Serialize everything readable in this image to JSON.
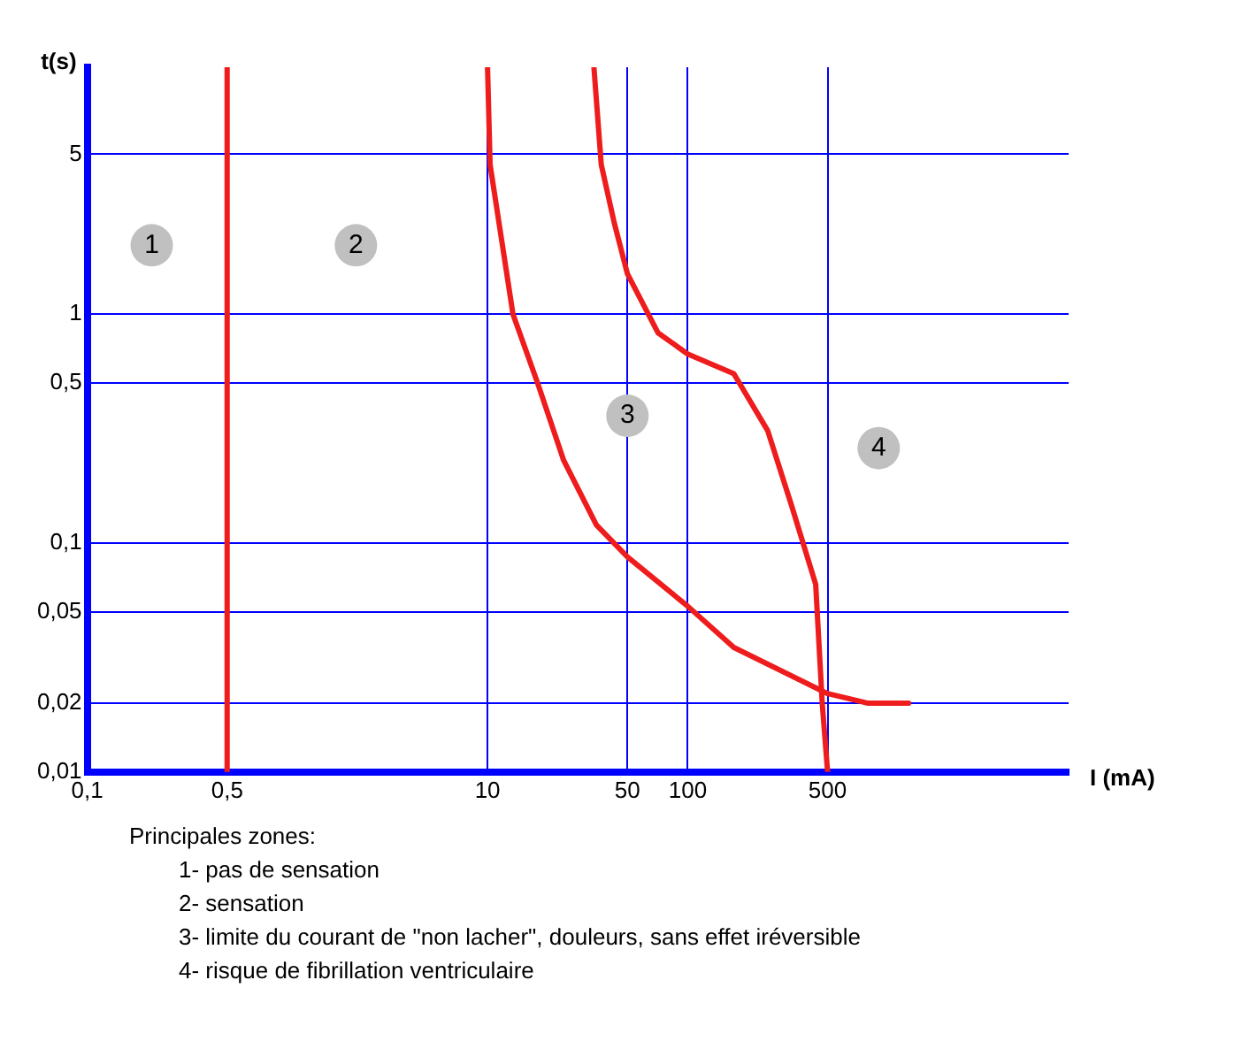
{
  "chart_data": {
    "type": "line",
    "xlabel": "I (mA)",
    "ylabel": "t(s)",
    "log": "xy",
    "grid": true,
    "legend": false,
    "marker": "none",
    "line_style": "solid",
    "xlim": [
      0.1,
      8000
    ],
    "xticks": [
      {
        "value": 0.1,
        "label": "0,1"
      },
      {
        "value": 0.5,
        "label": "0,5"
      },
      10,
      50,
      100,
      500
    ],
    "ylim": [
      0.01,
      12
    ],
    "yticks": [
      {
        "value": 0.01,
        "label": "0,01"
      },
      {
        "value": 0.02,
        "label": "0,02"
      },
      {
        "value": 0.05,
        "label": "0,05"
      },
      {
        "value": 0.1,
        "label": "0,1"
      },
      {
        "value": 0.5,
        "label": "0,5"
      },
      1,
      5
    ],
    "series": [
      {
        "color": "#ee1c1c",
        "x": [
          0.5,
          0.5
        ],
        "values": [
          0.01,
          12
        ]
      },
      {
        "color": "#ee1c1c",
        "x": [
          10,
          10.3,
          13.4,
          17.8,
          24,
          35,
          50,
          100,
          170,
          500,
          790,
          1270
        ],
        "values": [
          12,
          4.5,
          1,
          0.5,
          0.23,
          0.12,
          0.087,
          0.053,
          0.035,
          0.022,
          0.02,
          0.02
        ]
      },
      {
        "color": "#ee1c1c",
        "x": [
          34,
          37,
          43,
          50,
          71,
          100,
          170,
          251,
          331,
          436,
          470,
          500
        ],
        "values": [
          12,
          4.5,
          2.5,
          1.5,
          0.83,
          0.67,
          0.55,
          0.31,
          0.145,
          0.066,
          0.02,
          0.01
        ]
      }
    ],
    "annotations": [
      {
        "text": "1",
        "x": 0.21,
        "y": 2
      },
      {
        "text": "2",
        "x": 2.2,
        "y": 2
      },
      {
        "text": "3",
        "x": 50,
        "y": 0.36
      },
      {
        "text": "4",
        "x": 900,
        "y": 0.26
      },
      "Principales zones:",
      "1- pas de sensation",
      "2- sensation",
      "3- limite du courant de \"non lacher\", douleurs, sans effet iréversible",
      "4- risque de fibrillation ventriculaire"
    ]
  }
}
